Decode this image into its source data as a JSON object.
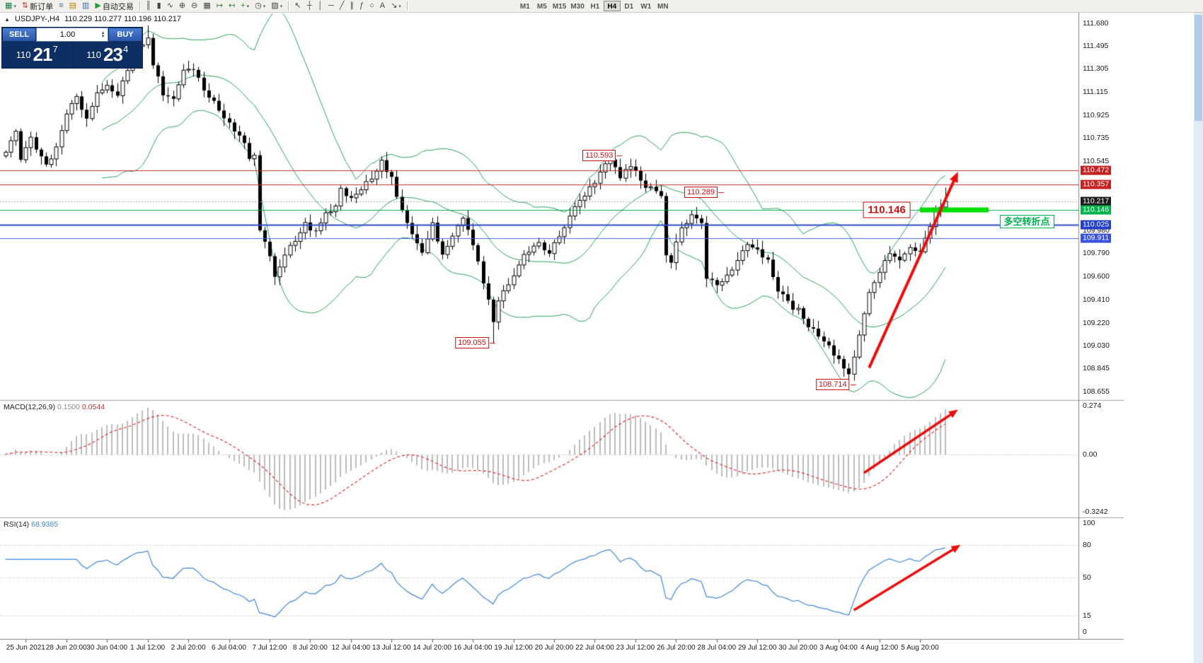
{
  "window": {
    "bg": "#ffffff",
    "toolbar_bg": "#f2f0ed"
  },
  "toolbar": {
    "groups": [
      {
        "name": "standard",
        "items": [
          {
            "name": "chart-window",
            "glyph": "▦",
            "color": "#1e7e46",
            "caret": true
          },
          {
            "name": "new-order",
            "glyph": "⇅",
            "color": "#c03030",
            "label": "新订单"
          },
          {
            "name": "market-watch",
            "glyph": "≡",
            "color": "#3a6ea5"
          },
          {
            "name": "data-window",
            "glyph": "▤",
            "color": "#b8860b"
          },
          {
            "name": "navigator",
            "glyph": "▥",
            "color": "#3a6ea5"
          },
          {
            "name": "autotrading",
            "glyph": "▶",
            "color": "#1fa02e",
            "label": "自动交易"
          }
        ]
      },
      {
        "name": "chart-controls",
        "items": [
          {
            "name": "bar-chart",
            "glyph": "║",
            "color": "#444444"
          },
          {
            "name": "candlestick-chart",
            "glyph": "▮",
            "color": "#444444"
          },
          {
            "name": "line-chart",
            "glyph": "∿",
            "color": "#444444"
          },
          {
            "name": "zoom-in",
            "glyph": "⊕",
            "color": "#444444"
          },
          {
            "name": "zoom-out",
            "glyph": "⊖",
            "color": "#444444"
          },
          {
            "name": "tile-windows",
            "glyph": "▦",
            "color": "#444444"
          },
          {
            "name": "auto-scroll",
            "glyph": "↦",
            "color": "#2e7d32"
          },
          {
            "name": "chart-shift",
            "glyph": "↤",
            "color": "#2e7d32"
          },
          {
            "name": "indicators",
            "glyph": "+",
            "color": "#1fa02e",
            "caret": true
          },
          {
            "name": "periods",
            "glyph": "◷",
            "color": "#444444",
            "caret": true
          },
          {
            "name": "templates",
            "glyph": "▨",
            "color": "#444444",
            "caret": true
          }
        ]
      },
      {
        "name": "line-studies",
        "items": [
          {
            "name": "cursor",
            "glyph": "↖",
            "color": "#444444"
          },
          {
            "name": "crosshair",
            "glyph": "┼",
            "color": "#444444"
          },
          {
            "name": "vertical-line",
            "glyph": "│",
            "color": "#444444"
          },
          {
            "name": "horizontal-line",
            "glyph": "─",
            "color": "#444444"
          },
          {
            "name": "trendline",
            "glyph": "╱",
            "color": "#444444"
          },
          {
            "name": "equidistant-channel",
            "glyph": "∥",
            "color": "#444444"
          },
          {
            "name": "fibonacci",
            "glyph": "ƒ",
            "color": "#444444"
          },
          {
            "name": "ellipse",
            "glyph": "○",
            "color": "#444444"
          },
          {
            "name": "text",
            "glyph": "A",
            "color": "#444444"
          },
          {
            "name": "arrows",
            "glyph": "↘",
            "color": "#444444",
            "caret": true
          }
        ]
      },
      {
        "name": "timeframes",
        "items": [
          {
            "name": "tf-m1",
            "label": "M1"
          },
          {
            "name": "tf-m5",
            "label": "M5"
          },
          {
            "name": "tf-m15",
            "label": "M15"
          },
          {
            "name": "tf-m30",
            "label": "M30"
          },
          {
            "name": "tf-h1",
            "label": "H1"
          },
          {
            "name": "tf-h4",
            "label": "H4",
            "active": true
          },
          {
            "name": "tf-d1",
            "label": "D1"
          },
          {
            "name": "tf-w1",
            "label": "W1"
          },
          {
            "name": "tf-mn",
            "label": "MN"
          }
        ]
      }
    ]
  },
  "chart_header": {
    "marker": "▲",
    "symbol_period": "USDJPY-,H4",
    "ohlc": "110.229 110.277 110.196 110.217"
  },
  "one_click": {
    "sell_label": "SELL",
    "buy_label": "BUY",
    "volume": "1.00",
    "sell_price": {
      "prefix": "110",
      "big": "21",
      "sup": "7"
    },
    "buy_price": {
      "prefix": "110",
      "big": "23",
      "sup": "4"
    }
  },
  "chart_data": {
    "type": "candlestick",
    "symbol": "USDJPY-",
    "period": "H4",
    "bars_total": 186,
    "price_axis": {
      "view_max": 111.73,
      "view_min": 108.62,
      "ticks": [
        "111.680",
        "111.495",
        "111.305",
        "111.115",
        "110.925",
        "110.735",
        "110.545",
        "109.980",
        "109.790",
        "109.600",
        "109.410",
        "109.220",
        "109.030",
        "108.845",
        "108.655"
      ]
    },
    "x_axis": {
      "labels": [
        "25 Jun 2021",
        "28 Jun 20:00",
        "30 Jun 04:00",
        "1 Jul 12:00",
        "2 Jul 20:00",
        "6 Jul 04:00",
        "7 Jul 12:00",
        "8 Jul 20:00",
        "12 Jul 04:00",
        "13 Jul 12:00",
        "14 Jul 20:00",
        "16 Jul 04:00",
        "19 Jul 12:00",
        "20 Jul 20:00",
        "22 Jul 04:00",
        "23 Jul 12:00",
        "26 Jul 20:00",
        "28 Jul 04:00",
        "29 Jul 12:00",
        "30 Jul 20:00",
        "3 Aug 04:00",
        "4 Aug 12:00",
        "5 Aug 20:00"
      ],
      "first_label_bar": 4,
      "label_every_bars": 8
    },
    "price_path": [
      [
        0,
        110.62
      ],
      [
        2,
        110.8
      ],
      [
        3,
        110.55
      ],
      [
        5,
        110.72
      ],
      [
        7,
        110.6
      ],
      [
        8,
        110.52
      ],
      [
        10,
        110.65
      ],
      [
        12,
        110.95
      ],
      [
        14,
        111.08
      ],
      [
        16,
        110.9
      ],
      [
        18,
        111.1
      ],
      [
        20,
        111.15
      ],
      [
        22,
        111.08
      ],
      [
        24,
        111.3
      ],
      [
        26,
        111.5
      ],
      [
        28,
        111.55
      ],
      [
        29,
        111.35
      ],
      [
        31,
        111.1
      ],
      [
        33,
        111.05
      ],
      [
        35,
        111.28
      ],
      [
        37,
        111.3
      ],
      [
        39,
        111.12
      ],
      [
        41,
        111.05
      ],
      [
        43,
        110.9
      ],
      [
        45,
        110.8
      ],
      [
        47,
        110.7
      ],
      [
        48,
        110.58
      ],
      [
        49,
        110.62
      ],
      [
        50,
        110.0
      ],
      [
        52,
        109.78
      ],
      [
        53,
        109.6
      ],
      [
        55,
        109.8
      ],
      [
        57,
        109.9
      ],
      [
        59,
        110.02
      ],
      [
        61,
        109.95
      ],
      [
        63,
        110.1
      ],
      [
        65,
        110.18
      ],
      [
        66,
        110.32
      ],
      [
        68,
        110.25
      ],
      [
        70,
        110.3
      ],
      [
        72,
        110.42
      ],
      [
        74,
        110.55
      ],
      [
        76,
        110.4
      ],
      [
        78,
        110.12
      ],
      [
        80,
        109.95
      ],
      [
        82,
        109.78
      ],
      [
        84,
        110.02
      ],
      [
        86,
        109.8
      ],
      [
        88,
        109.92
      ],
      [
        90,
        110.08
      ],
      [
        92,
        109.88
      ],
      [
        94,
        109.55
      ],
      [
        96,
        109.22
      ],
      [
        97,
        109.4
      ],
      [
        99,
        109.55
      ],
      [
        101,
        109.7
      ],
      [
        103,
        109.82
      ],
      [
        105,
        109.88
      ],
      [
        107,
        109.8
      ],
      [
        109,
        109.92
      ],
      [
        111,
        110.1
      ],
      [
        113,
        110.2
      ],
      [
        115,
        110.32
      ],
      [
        117,
        110.45
      ],
      [
        119,
        110.55
      ],
      [
        121,
        110.42
      ],
      [
        123,
        110.52
      ],
      [
        125,
        110.38
      ],
      [
        127,
        110.32
      ],
      [
        129,
        110.28
      ],
      [
        130,
        109.78
      ],
      [
        131,
        109.72
      ],
      [
        133,
        110.0
      ],
      [
        135,
        110.1
      ],
      [
        137,
        110.05
      ],
      [
        138,
        109.6
      ],
      [
        140,
        109.52
      ],
      [
        142,
        109.62
      ],
      [
        144,
        109.72
      ],
      [
        146,
        109.88
      ],
      [
        148,
        109.82
      ],
      [
        150,
        109.72
      ],
      [
        152,
        109.48
      ],
      [
        154,
        109.38
      ],
      [
        156,
        109.32
      ],
      [
        158,
        109.2
      ],
      [
        160,
        109.12
      ],
      [
        162,
        109.02
      ],
      [
        164,
        108.92
      ],
      [
        166,
        108.8
      ],
      [
        168,
        109.1
      ],
      [
        170,
        109.45
      ],
      [
        172,
        109.65
      ],
      [
        174,
        109.8
      ],
      [
        176,
        109.72
      ],
      [
        178,
        109.85
      ],
      [
        180,
        109.78
      ],
      [
        181,
        109.9
      ],
      [
        183,
        110.12
      ],
      [
        185,
        110.217
      ]
    ],
    "spikes": [
      {
        "bar": 28,
        "high": 111.66
      },
      {
        "bar": 53,
        "low": 109.53
      },
      {
        "bar": 96,
        "low": 109.055
      },
      {
        "bar": 119,
        "high": 110.593
      },
      {
        "bar": 166,
        "low": 108.714
      },
      {
        "bar": 185,
        "high": 110.33
      }
    ],
    "bollinger": {
      "period": 20,
      "deviation": 2.0,
      "color": "#2ca05a"
    },
    "levels": [
      {
        "label": "110.472",
        "price": 110.472,
        "line_color": "#cf2e2e",
        "line_width": 1,
        "dash": [],
        "box_bg": "#c42222"
      },
      {
        "label": "110.357",
        "price": 110.357,
        "line_color": "#cf2e2e",
        "line_width": 1,
        "dash": [],
        "box_bg": "#c42222"
      },
      {
        "label": "110.217",
        "price": 110.217,
        "line_color": "#a8a8a8",
        "line_width": 1,
        "dash": [
          2,
          2
        ],
        "box_bg": "#1c1c1c",
        "current": true
      },
      {
        "label": "110.146",
        "price": 110.146,
        "line_color": "#00a84e",
        "line_width": 1,
        "dash": [],
        "box_bg": "#00b44a"
      },
      {
        "label": "110.025",
        "price": 110.025,
        "line_color": "#2b48cf",
        "line_width": 2,
        "dash": [],
        "box_bg": "#2440c8"
      },
      {
        "label": "109.911",
        "price": 109.911,
        "line_color": "#4a63e8",
        "line_width": 1,
        "dash": [],
        "box_bg": "#3852dd"
      }
    ],
    "highlight_segment": {
      "price": 110.146,
      "from_bar": 180,
      "to_bar": 193.5,
      "color": "#00dd00",
      "thickness": 7
    },
    "note": {
      "text": "多空转折点",
      "color": "#00b050"
    },
    "annotation_color": "#cc1111",
    "annotations": [
      {
        "text": "110.593",
        "bar": 121,
        "price": 110.593
      },
      {
        "text": "110.289",
        "bar": 141,
        "price": 110.289
      },
      {
        "text": "110.146",
        "bar": 179,
        "price": 110.146,
        "big": true
      },
      {
        "text": "109.055",
        "bar": 96,
        "price": 109.055
      },
      {
        "text": "108.714",
        "bar": 167,
        "price": 108.714
      }
    ],
    "arrows": [
      {
        "panel": "main",
        "from_bar": 170,
        "from_val": 108.85,
        "to_bar": 187.5,
        "to_val": 110.46,
        "color": "#e80e0e",
        "width": 4
      },
      {
        "panel": "macd",
        "from_bar": 169,
        "from_val": -0.105,
        "to_bar": 187.5,
        "to_val": 0.252,
        "color": "#e80e0e",
        "width": 3.5
      },
      {
        "panel": "rsi",
        "from_bar": 167,
        "from_val": 20,
        "to_bar": 188,
        "to_val": 80,
        "color": "#e80e0e",
        "width": 3.5
      }
    ],
    "macd": {
      "label": "MACD(12,26,9)",
      "value_main": "0.1500",
      "value_signal": "0.0544",
      "scale_top": "0.274",
      "scale_zero": "0.00",
      "scale_bottom": "-0.3242",
      "max": 0.274,
      "min": -0.3242,
      "hist_color": "#bcbcbc",
      "signal_color": "#e03030"
    },
    "rsi": {
      "label": "RSI(14)",
      "value": "68.9385",
      "line_color": "#3f85d6",
      "scale_labels": [
        "100",
        "80",
        "50",
        "15",
        "0"
      ],
      "scale_values": [
        100,
        80,
        50,
        15,
        0
      ],
      "level_lines": [
        80,
        50,
        15
      ],
      "max": 100,
      "min": 0
    }
  }
}
